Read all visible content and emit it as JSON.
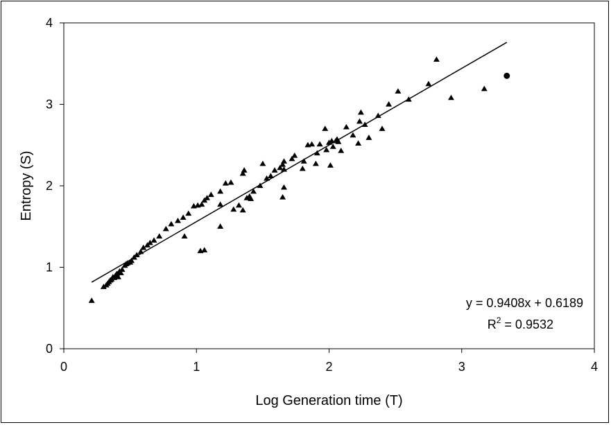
{
  "chart_data": {
    "type": "scatter",
    "title": "",
    "xlabel": "Log Generation time (T)",
    "ylabel": "Entropy (S)",
    "xlim": [
      0,
      4
    ],
    "ylim": [
      0,
      4
    ],
    "x_ticks": [
      "0",
      "1",
      "2",
      "3",
      "4"
    ],
    "y_ticks": [
      "0",
      "1",
      "2",
      "3",
      "4"
    ],
    "grid": false,
    "legend": "none",
    "marker_color": "#000000",
    "series": [
      {
        "marker": "triangle",
        "points": [
          [
            0.21,
            0.59
          ],
          [
            0.3,
            0.76
          ],
          [
            0.32,
            0.78
          ],
          [
            0.33,
            0.8
          ],
          [
            0.34,
            0.82
          ],
          [
            0.35,
            0.84
          ],
          [
            0.36,
            0.85
          ],
          [
            0.37,
            0.88
          ],
          [
            0.38,
            0.87
          ],
          [
            0.39,
            0.9
          ],
          [
            0.4,
            0.92
          ],
          [
            0.41,
            0.88
          ],
          [
            0.42,
            0.95
          ],
          [
            0.43,
            0.93
          ],
          [
            0.44,
            0.97
          ],
          [
            0.46,
            1.02
          ],
          [
            0.47,
            1.04
          ],
          [
            0.48,
            1.05
          ],
          [
            0.5,
            1.06
          ],
          [
            0.51,
            1.08
          ],
          [
            0.53,
            1.12
          ],
          [
            0.55,
            1.15
          ],
          [
            0.58,
            1.19
          ],
          [
            0.6,
            1.24
          ],
          [
            0.63,
            1.27
          ],
          [
            0.65,
            1.3
          ],
          [
            0.68,
            1.33
          ],
          [
            0.72,
            1.38
          ],
          [
            0.77,
            1.47
          ],
          [
            0.81,
            1.53
          ],
          [
            0.86,
            1.57
          ],
          [
            0.9,
            1.61
          ],
          [
            0.94,
            1.66
          ],
          [
            0.98,
            1.75
          ],
          [
            1.01,
            1.76
          ],
          [
            1.04,
            1.77
          ],
          [
            1.06,
            1.82
          ],
          [
            1.08,
            1.85
          ],
          [
            1.11,
            1.89
          ],
          [
            1.18,
            1.93
          ],
          [
            0.91,
            1.38
          ],
          [
            1.03,
            1.2
          ],
          [
            1.06,
            1.21
          ],
          [
            1.18,
            1.5
          ],
          [
            1.18,
            1.77
          ],
          [
            1.22,
            2.03
          ],
          [
            1.26,
            2.04
          ],
          [
            1.28,
            1.71
          ],
          [
            1.32,
            1.76
          ],
          [
            1.35,
            2.15
          ],
          [
            1.36,
            2.19
          ],
          [
            1.35,
            1.7
          ],
          [
            1.38,
            1.85
          ],
          [
            1.4,
            1.87
          ],
          [
            1.41,
            1.84
          ],
          [
            1.43,
            1.93
          ],
          [
            1.48,
            2.0
          ],
          [
            1.5,
            2.27
          ],
          [
            1.53,
            2.09
          ],
          [
            1.56,
            2.12
          ],
          [
            1.59,
            2.19
          ],
          [
            1.63,
            2.22
          ],
          [
            1.65,
            2.26
          ],
          [
            1.66,
            2.3
          ],
          [
            1.66,
            2.2
          ],
          [
            1.65,
            1.86
          ],
          [
            1.66,
            1.98
          ],
          [
            1.72,
            2.33
          ],
          [
            1.74,
            2.37
          ],
          [
            1.8,
            2.21
          ],
          [
            1.81,
            2.3
          ],
          [
            1.84,
            2.5
          ],
          [
            1.87,
            2.51
          ],
          [
            1.9,
            2.27
          ],
          [
            1.91,
            2.4
          ],
          [
            1.93,
            2.51
          ],
          [
            1.97,
            2.7
          ],
          [
            1.98,
            2.44
          ],
          [
            2.0,
            2.53
          ],
          [
            2.02,
            2.55
          ],
          [
            2.01,
            2.25
          ],
          [
            2.03,
            2.48
          ],
          [
            2.05,
            2.55
          ],
          [
            2.06,
            2.57
          ],
          [
            2.07,
            2.54
          ],
          [
            2.09,
            2.43
          ],
          [
            2.13,
            2.72
          ],
          [
            2.18,
            2.62
          ],
          [
            2.22,
            2.52
          ],
          [
            2.23,
            2.79
          ],
          [
            2.24,
            2.9
          ],
          [
            2.27,
            2.75
          ],
          [
            2.3,
            2.59
          ],
          [
            2.37,
            2.86
          ],
          [
            2.4,
            2.7
          ],
          [
            2.45,
            3.0
          ],
          [
            2.52,
            3.16
          ],
          [
            2.6,
            3.06
          ],
          [
            2.75,
            3.25
          ],
          [
            2.81,
            3.55
          ],
          [
            2.92,
            3.08
          ],
          [
            3.17,
            3.19
          ]
        ]
      },
      {
        "marker": "circle",
        "points": [
          [
            3.34,
            3.35
          ]
        ]
      }
    ],
    "trendline": {
      "slope": 0.9408,
      "intercept": 0.6189,
      "x_range": [
        0.21,
        3.34
      ]
    },
    "annotations": {
      "equation": "y = 0.9408x + 0.6189",
      "r2_label": "R",
      "r2_sup": "2",
      "r2_value": " = 0.9532"
    }
  }
}
